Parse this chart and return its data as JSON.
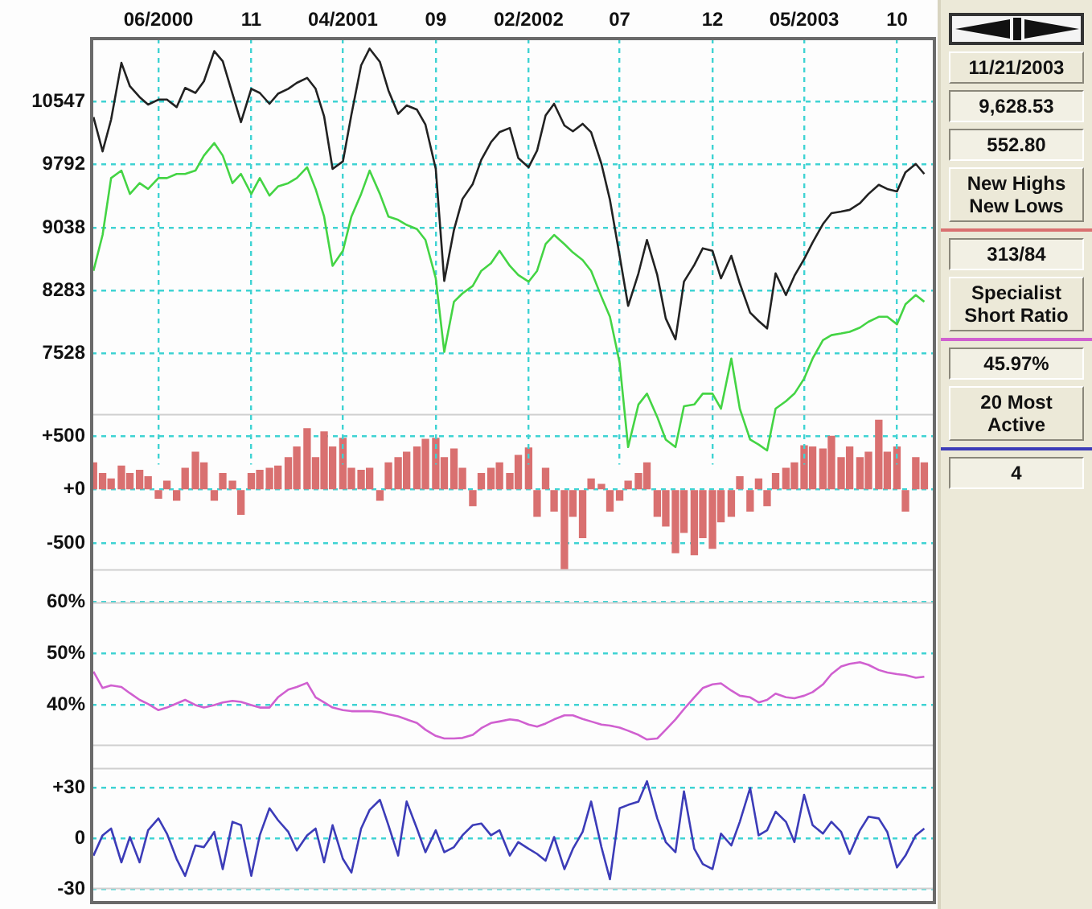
{
  "chart_data": [
    {
      "type": "line",
      "xlim": [
        "2000-02-12",
        "2003-11-29"
      ],
      "xticks": [
        {
          "value": "2000-06-01",
          "label": "06/2000"
        },
        {
          "value": "2000-11-01",
          "label": "11"
        },
        {
          "value": "2001-04-01",
          "label": "04/2001"
        },
        {
          "value": "2001-09-01",
          "label": "09"
        },
        {
          "value": "2002-02-01",
          "label": "02/2002"
        },
        {
          "value": "2002-07-01",
          "label": "07"
        },
        {
          "value": "2002-12-01",
          "label": "12"
        },
        {
          "value": "2003-05-01",
          "label": "05/2003"
        },
        {
          "value": "2003-10-01",
          "label": "10"
        }
      ],
      "ylim": [
        6200,
        11300
      ],
      "yticks": [
        7528,
        8283,
        9038,
        9792,
        10547
      ],
      "grid": true,
      "annotations": [
        "11/21/2003",
        "9,628.53",
        "552.80"
      ],
      "x": [
        "2000-02-15",
        "2000-03-01",
        "2000-03-15",
        "2000-04-01",
        "2000-04-15",
        "2000-05-01",
        "2000-05-15",
        "2000-06-01",
        "2000-06-15",
        "2000-07-01",
        "2000-07-15",
        "2000-08-01",
        "2000-08-15",
        "2000-09-01",
        "2000-09-15",
        "2000-10-01",
        "2000-10-15",
        "2000-11-01",
        "2000-11-15",
        "2000-12-01",
        "2000-12-15",
        "2001-01-01",
        "2001-01-15",
        "2001-02-01",
        "2001-02-15",
        "2001-03-01",
        "2001-03-15",
        "2001-04-01",
        "2001-04-15",
        "2001-05-01",
        "2001-05-15",
        "2001-06-01",
        "2001-06-15",
        "2001-07-01",
        "2001-07-15",
        "2001-08-01",
        "2001-08-15",
        "2001-09-01",
        "2001-09-15",
        "2001-10-01",
        "2001-10-15",
        "2001-11-01",
        "2001-11-15",
        "2001-12-01",
        "2001-12-15",
        "2002-01-01",
        "2002-01-15",
        "2002-02-01",
        "2002-02-15",
        "2002-03-01",
        "2002-03-15",
        "2002-04-01",
        "2002-04-15",
        "2002-05-01",
        "2002-05-15",
        "2002-06-01",
        "2002-06-15",
        "2002-07-01",
        "2002-07-15",
        "2002-08-01",
        "2002-08-15",
        "2002-09-01",
        "2002-09-15",
        "2002-10-01",
        "2002-10-15",
        "2002-11-01",
        "2002-11-15",
        "2002-12-01",
        "2002-12-15",
        "2003-01-01",
        "2003-01-15",
        "2003-02-01",
        "2003-02-15",
        "2003-03-01",
        "2003-03-15",
        "2003-04-01",
        "2003-04-15",
        "2003-05-01",
        "2003-05-15",
        "2003-06-01",
        "2003-06-15",
        "2003-07-01",
        "2003-07-15",
        "2003-08-01",
        "2003-08-15",
        "2003-09-01",
        "2003-09-15",
        "2003-10-01",
        "2003-10-15",
        "2003-11-01",
        "2003-11-15"
      ],
      "series": [
        {
          "color": "#222222",
          "values": [
            10360,
            9950,
            10330,
            11010,
            10730,
            10600,
            10510,
            10570,
            10570,
            10480,
            10710,
            10650,
            10790,
            11150,
            11030,
            10640,
            10300,
            10700,
            10650,
            10520,
            10640,
            10700,
            10770,
            10830,
            10700,
            10370,
            9740,
            9830,
            10390,
            10980,
            11180,
            11020,
            10680,
            10400,
            10500,
            10450,
            10270,
            9740,
            8400,
            9010,
            9380,
            9560,
            9850,
            10060,
            10180,
            10230,
            9870,
            9760,
            9960,
            10380,
            10520,
            10260,
            10190,
            10280,
            10180,
            9800,
            9370,
            8700,
            8100,
            8490,
            8890,
            8470,
            7950,
            7700,
            8390,
            8590,
            8790,
            8760,
            8430,
            8700,
            8370,
            8020,
            7920,
            7830,
            8490,
            8230,
            8460,
            8660,
            8860,
            9080,
            9210,
            9230,
            9250,
            9330,
            9440,
            9550,
            9500,
            9470,
            9700,
            9800,
            9680
          ]
        },
        {
          "color": "#44d444",
          "values": [
            8520,
            8950,
            9630,
            9720,
            9440,
            9570,
            9500,
            9630,
            9630,
            9680,
            9680,
            9720,
            9900,
            10050,
            9900,
            9570,
            9680,
            9440,
            9630,
            9420,
            9530,
            9570,
            9630,
            9760,
            9500,
            9170,
            8580,
            8760,
            9170,
            9440,
            9720,
            9440,
            9170,
            9130,
            9070,
            9020,
            8890,
            8430,
            7550,
            8150,
            8250,
            8340,
            8520,
            8610,
            8760,
            8580,
            8470,
            8390,
            8520,
            8840,
            8950,
            8840,
            8740,
            8650,
            8520,
            8210,
            7970,
            7420,
            6410,
            6920,
            7050,
            6770,
            6500,
            6410,
            6900,
            6920,
            7050,
            7050,
            6870,
            7470,
            6870,
            6500,
            6440,
            6370,
            6870,
            6960,
            7050,
            7230,
            7470,
            7690,
            7750,
            7770,
            7790,
            7840,
            7910,
            7970,
            7970,
            7880,
            8120,
            8230,
            8150
          ]
        }
      ]
    },
    {
      "type": "bar",
      "xlim": [
        "2000-02-12",
        "2003-11-29"
      ],
      "xticks": [
        {
          "value": "2000-06-01",
          "label": null
        },
        {
          "value": "2000-11-01",
          "label": null
        },
        {
          "value": "2001-04-01",
          "label": null
        },
        {
          "value": "2001-09-01",
          "label": null
        },
        {
          "value": "2002-02-01",
          "label": null
        },
        {
          "value": "2002-07-01",
          "label": null
        },
        {
          "value": "2002-12-01",
          "label": null
        },
        {
          "value": "2003-05-01",
          "label": null
        },
        {
          "value": "2003-10-01",
          "label": null
        }
      ],
      "ylim": [
        -760,
        710
      ],
      "yticks": [
        {
          "value": 500,
          "label": "+500"
        },
        {
          "value": 0,
          "label": "+0"
        },
        -500
      ],
      "grid": true,
      "legend": "right",
      "tick_labels": "y",
      "annotations": [
        "313/84"
      ],
      "x": [
        "2000-02-15",
        "2000-03-01",
        "2000-03-15",
        "2000-04-01",
        "2000-04-15",
        "2000-05-01",
        "2000-05-15",
        "2000-06-01",
        "2000-06-15",
        "2000-07-01",
        "2000-07-15",
        "2000-08-01",
        "2000-08-15",
        "2000-09-01",
        "2000-09-15",
        "2000-10-01",
        "2000-10-15",
        "2000-11-01",
        "2000-11-15",
        "2000-12-01",
        "2000-12-15",
        "2001-01-01",
        "2001-01-15",
        "2001-02-01",
        "2001-02-15",
        "2001-03-01",
        "2001-03-15",
        "2001-04-01",
        "2001-04-15",
        "2001-05-01",
        "2001-05-15",
        "2001-06-01",
        "2001-06-15",
        "2001-07-01",
        "2001-07-15",
        "2001-08-01",
        "2001-08-15",
        "2001-09-01",
        "2001-09-15",
        "2001-10-01",
        "2001-10-15",
        "2001-11-01",
        "2001-11-15",
        "2001-12-01",
        "2001-12-15",
        "2002-01-01",
        "2002-01-15",
        "2002-02-01",
        "2002-02-15",
        "2002-03-01",
        "2002-03-15",
        "2002-04-01",
        "2002-04-15",
        "2002-05-01",
        "2002-05-15",
        "2002-06-01",
        "2002-06-15",
        "2002-07-01",
        "2002-07-15",
        "2002-08-01",
        "2002-08-15",
        "2002-09-01",
        "2002-09-15",
        "2002-10-01",
        "2002-10-15",
        "2002-11-01",
        "2002-11-15",
        "2002-12-01",
        "2002-12-15",
        "2003-01-01",
        "2003-01-15",
        "2003-02-01",
        "2003-02-15",
        "2003-03-01",
        "2003-03-15",
        "2003-04-01",
        "2003-04-15",
        "2003-05-01",
        "2003-05-15",
        "2003-06-01",
        "2003-06-15",
        "2003-07-01",
        "2003-07-15",
        "2003-08-01",
        "2003-08-15",
        "2003-09-01",
        "2003-09-15",
        "2003-10-01",
        "2003-10-15",
        "2003-11-01",
        "2003-11-15"
      ],
      "series": [
        {
          "name": "New Highs New Lows",
          "color": "#d97070",
          "values": [
            250,
            150,
            100,
            220,
            150,
            180,
            120,
            -80,
            80,
            -100,
            200,
            350,
            250,
            -100,
            150,
            80,
            -230,
            150,
            180,
            200,
            220,
            300,
            400,
            570,
            300,
            540,
            400,
            480,
            200,
            180,
            200,
            -100,
            250,
            300,
            350,
            400,
            470,
            480,
            300,
            380,
            200,
            -150,
            150,
            200,
            250,
            150,
            320,
            390,
            -250,
            200,
            -200,
            -740,
            -250,
            -450,
            100,
            50,
            -200,
            -100,
            80,
            150,
            250,
            -250,
            -340,
            -590,
            -400,
            -610,
            -450,
            -550,
            -300,
            -250,
            120,
            -200,
            100,
            -150,
            150,
            200,
            250,
            410,
            400,
            380,
            500,
            300,
            400,
            300,
            350,
            650,
            350,
            400,
            -200,
            300,
            250
          ]
        }
      ]
    },
    {
      "type": "line",
      "xlim": [
        "2000-02-12",
        "2003-11-29"
      ],
      "xticks": [
        {
          "value": "2000-06-01",
          "label": null
        },
        {
          "value": "2000-11-01",
          "label": null
        },
        {
          "value": "2001-04-01",
          "label": null
        },
        {
          "value": "2001-09-01",
          "label": null
        },
        {
          "value": "2002-02-01",
          "label": null
        },
        {
          "value": "2002-07-01",
          "label": null
        },
        {
          "value": "2002-12-01",
          "label": null
        },
        {
          "value": "2003-05-01",
          "label": null
        },
        {
          "value": "2003-10-01",
          "label": null
        }
      ],
      "ylim": [
        32,
        60
      ],
      "yticks": [
        {
          "value": 60,
          "label": "60%"
        },
        {
          "value": 50,
          "label": "50%"
        },
        {
          "value": 40,
          "label": "40%"
        }
      ],
      "grid": true,
      "legend": "right",
      "tick_labels": "y",
      "annotations": [
        "45.97%"
      ],
      "x": [
        "2000-02-15",
        "2000-03-01",
        "2000-03-15",
        "2000-04-01",
        "2000-04-15",
        "2000-05-01",
        "2000-05-15",
        "2000-06-01",
        "2000-06-15",
        "2000-07-01",
        "2000-07-15",
        "2000-08-01",
        "2000-08-15",
        "2000-09-01",
        "2000-09-15",
        "2000-10-01",
        "2000-10-15",
        "2000-11-01",
        "2000-11-15",
        "2000-12-01",
        "2000-12-15",
        "2001-01-01",
        "2001-01-15",
        "2001-02-01",
        "2001-02-15",
        "2001-03-01",
        "2001-03-15",
        "2001-04-01",
        "2001-04-15",
        "2001-05-01",
        "2001-05-15",
        "2001-06-01",
        "2001-06-15",
        "2001-07-01",
        "2001-07-15",
        "2001-08-01",
        "2001-08-15",
        "2001-09-01",
        "2001-09-15",
        "2001-10-01",
        "2001-10-15",
        "2001-11-01",
        "2001-11-15",
        "2001-12-01",
        "2001-12-15",
        "2002-01-01",
        "2002-01-15",
        "2002-02-01",
        "2002-02-15",
        "2002-03-01",
        "2002-03-15",
        "2002-04-01",
        "2002-04-15",
        "2002-05-01",
        "2002-05-15",
        "2002-06-01",
        "2002-06-15",
        "2002-07-01",
        "2002-07-15",
        "2002-08-01",
        "2002-08-15",
        "2002-09-01",
        "2002-09-15",
        "2002-10-01",
        "2002-10-15",
        "2002-11-01",
        "2002-11-15",
        "2002-12-01",
        "2002-12-15",
        "2003-01-01",
        "2003-01-15",
        "2003-02-01",
        "2003-02-15",
        "2003-03-01",
        "2003-03-15",
        "2003-04-01",
        "2003-04-15",
        "2003-05-01",
        "2003-05-15",
        "2003-06-01",
        "2003-06-15",
        "2003-07-01",
        "2003-07-15",
        "2003-08-01",
        "2003-08-15",
        "2003-09-01",
        "2003-09-15",
        "2003-10-01",
        "2003-10-15",
        "2003-11-01",
        "2003-11-15"
      ],
      "series": [
        {
          "name": "Specialist Short Ratio",
          "color": "#d060d0",
          "values": [
            46.5,
            43.3,
            43.8,
            43.5,
            42.3,
            41,
            40.2,
            39,
            39.5,
            40.3,
            41,
            40,
            39.5,
            40,
            40.5,
            40.8,
            40.6,
            40,
            39.5,
            39.5,
            41.5,
            43,
            43.5,
            44.3,
            41.5,
            40.5,
            39.5,
            39,
            38.8,
            38.8,
            38.8,
            38.6,
            38.2,
            37.8,
            37.2,
            36.5,
            35.2,
            34,
            33.5,
            33.5,
            33.6,
            34.2,
            35.5,
            36.5,
            36.8,
            37.2,
            37,
            36.2,
            35.8,
            36.4,
            37.2,
            38,
            38,
            37.3,
            36.8,
            36.2,
            36,
            35.6,
            35,
            34.2,
            33.3,
            33.5,
            35.2,
            37.2,
            39.2,
            41.5,
            43.3,
            44,
            44.2,
            42.8,
            41.8,
            41.5,
            40.5,
            41,
            42.2,
            41.5,
            41.3,
            41.8,
            42.5,
            44,
            46,
            47.5,
            48,
            48.3,
            47.8,
            46.8,
            46.3,
            46,
            45.8,
            45.3,
            45.5
          ]
        }
      ]
    },
    {
      "type": "line",
      "xlim": [
        "2000-02-12",
        "2003-11-29"
      ],
      "xticks": [
        {
          "value": "2000-06-01",
          "label": null
        },
        {
          "value": "2000-11-01",
          "label": null
        },
        {
          "value": "2001-04-01",
          "label": null
        },
        {
          "value": "2001-09-01",
          "label": null
        },
        {
          "value": "2002-02-01",
          "label": null
        },
        {
          "value": "2002-07-01",
          "label": null
        },
        {
          "value": "2002-12-01",
          "label": null
        },
        {
          "value": "2003-05-01",
          "label": null
        },
        {
          "value": "2003-10-01",
          "label": null
        }
      ],
      "ylim": [
        -30,
        42
      ],
      "yticks": [
        {
          "value": 30,
          "label": "+30"
        },
        0,
        -30
      ],
      "grid": true,
      "legend": "right",
      "tick_labels": "y",
      "annotations": [
        "4"
      ],
      "x": [
        "2000-02-15",
        "2000-03-01",
        "2000-03-15",
        "2000-04-01",
        "2000-04-15",
        "2000-05-01",
        "2000-05-15",
        "2000-06-01",
        "2000-06-15",
        "2000-07-01",
        "2000-07-15",
        "2000-08-01",
        "2000-08-15",
        "2000-09-01",
        "2000-09-15",
        "2000-10-01",
        "2000-10-15",
        "2000-11-01",
        "2000-11-15",
        "2000-12-01",
        "2000-12-15",
        "2001-01-01",
        "2001-01-15",
        "2001-02-01",
        "2001-02-15",
        "2001-03-01",
        "2001-03-15",
        "2001-04-01",
        "2001-04-15",
        "2001-05-01",
        "2001-05-15",
        "2001-06-01",
        "2001-06-15",
        "2001-07-01",
        "2001-07-15",
        "2001-08-01",
        "2001-08-15",
        "2001-09-01",
        "2001-09-15",
        "2001-10-01",
        "2001-10-15",
        "2001-11-01",
        "2001-11-15",
        "2001-12-01",
        "2001-12-15",
        "2002-01-01",
        "2002-01-15",
        "2002-02-01",
        "2002-02-15",
        "2002-03-01",
        "2002-03-15",
        "2002-04-01",
        "2002-04-15",
        "2002-05-01",
        "2002-05-15",
        "2002-06-01",
        "2002-06-15",
        "2002-07-01",
        "2002-07-15",
        "2002-08-01",
        "2002-08-15",
        "2002-09-01",
        "2002-09-15",
        "2002-10-01",
        "2002-10-15",
        "2002-11-01",
        "2002-11-15",
        "2002-12-01",
        "2002-12-15",
        "2003-01-01",
        "2003-01-15",
        "2003-02-01",
        "2003-02-15",
        "2003-03-01",
        "2003-03-15",
        "2003-04-01",
        "2003-04-15",
        "2003-05-01",
        "2003-05-15",
        "2003-06-01",
        "2003-06-15",
        "2003-07-01",
        "2003-07-15",
        "2003-08-01",
        "2003-08-15",
        "2003-09-01",
        "2003-09-15",
        "2003-10-01",
        "2003-10-15",
        "2003-11-01",
        "2003-11-15"
      ],
      "series": [
        {
          "name": "20 Most Active",
          "color": "#3c3cb8",
          "values": [
            -10,
            2,
            6,
            -14,
            1,
            -14,
            5,
            12,
            3,
            -12,
            -22,
            -4,
            -5,
            4,
            -18,
            10,
            8,
            -22,
            2,
            18,
            11,
            4,
            -7,
            2,
            6,
            -14,
            8,
            -12,
            -20,
            6,
            17,
            23,
            8,
            -10,
            22,
            6,
            -8,
            5,
            -8,
            -5,
            2,
            8,
            9,
            2,
            5,
            -10,
            -2,
            -6,
            -9,
            -13,
            1,
            -18,
            -6,
            4,
            22,
            -5,
            -24,
            18,
            20,
            22,
            34,
            12,
            -2,
            -8,
            28,
            -6,
            -15,
            -18,
            3,
            -4,
            10,
            30,
            2,
            5,
            16,
            10,
            -2,
            26,
            8,
            3,
            10,
            4,
            -9,
            5,
            13,
            12,
            4,
            -17,
            -10,
            2,
            6
          ]
        }
      ]
    }
  ]
}
